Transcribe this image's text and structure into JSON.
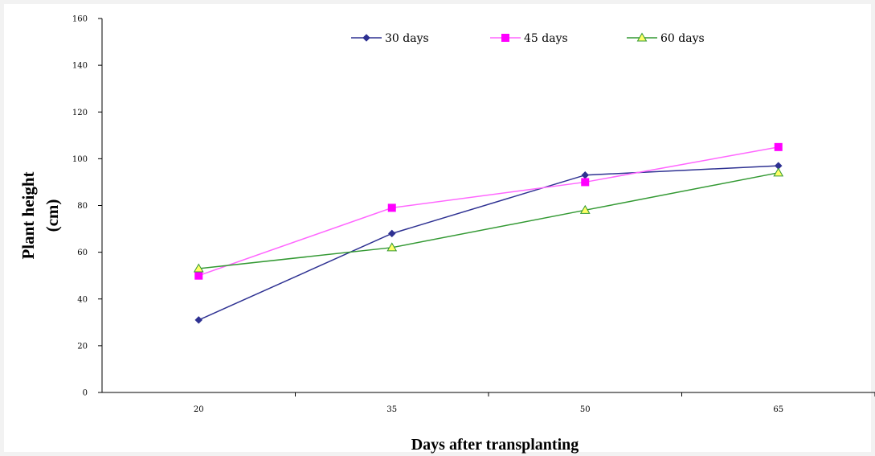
{
  "chart_data": {
    "type": "line",
    "title": "",
    "xlabel": "Days after transplanting",
    "ylabel": [
      "Plant height",
      "(cm)"
    ],
    "categories": [
      "20",
      "35",
      "50",
      "65"
    ],
    "ylim": [
      0,
      160
    ],
    "yticks": [
      0,
      20,
      40,
      60,
      80,
      100,
      120,
      140,
      160
    ],
    "grid": false,
    "legend_position": "top",
    "series": [
      {
        "name": "30 days",
        "values": [
          31,
          68,
          93,
          97
        ],
        "color": "#2e3192",
        "marker": "diamond"
      },
      {
        "name": "45 days",
        "values": [
          50,
          79,
          90,
          105
        ],
        "color": "#ff00ff",
        "line_color": "#ff66ff",
        "marker": "square"
      },
      {
        "name": "60 days",
        "values": [
          53,
          62,
          78,
          94
        ],
        "color": "#ffff66",
        "line_color": "#339933",
        "marker": "triangle"
      }
    ]
  }
}
